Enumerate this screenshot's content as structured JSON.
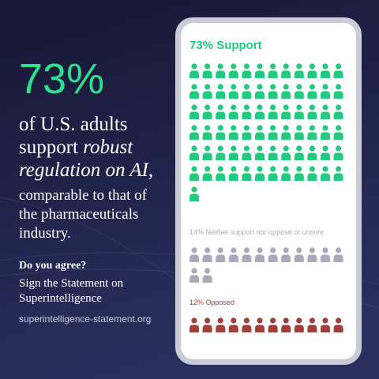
{
  "panel": {
    "stat": "73%",
    "line1": "of U.S. adults",
    "line2a": "support ",
    "line2b": "robust",
    "line3": "regulation on AI,",
    "line4": "comparable to that of",
    "line5": "the pharmaceuticals",
    "line6": "industry.",
    "question": "Do you agree?",
    "cta1": "Sign the Statement on",
    "cta2": "Superintelligence",
    "url": "superintelligence-statement.org"
  },
  "chart_data": {
    "type": "pictogram",
    "per_row": 12,
    "values": [
      73,
      14,
      12
    ],
    "value_labels": [
      "73% Support",
      "14% Neither support nor oppose or unsure",
      "12% Opposed"
    ],
    "colors": [
      "#22c97f",
      "#a9a9b8",
      "#a0403c"
    ]
  }
}
